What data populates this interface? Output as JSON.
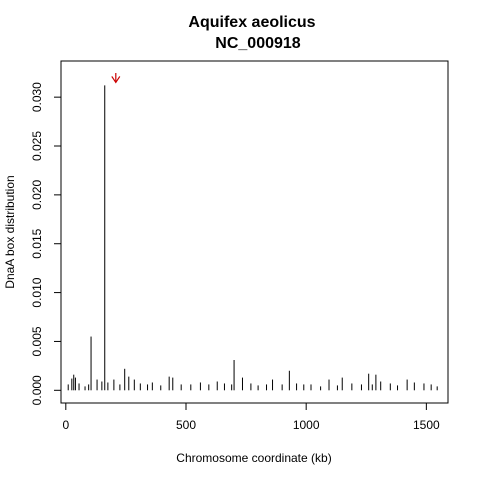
{
  "chart_data": {
    "type": "bar",
    "title": "Aquifex aeolicus",
    "subtitle": "NC_000918",
    "xlabel": "Chromosome coordinate (kb)",
    "ylabel": "DnaA box distribution",
    "xlim": [
      -20,
      1590
    ],
    "ylim": [
      -0.0013,
      0.0337
    ],
    "xticks": [
      0,
      500,
      1000,
      1500
    ],
    "xtick_labels": [
      "0",
      "500",
      "1000",
      "1500"
    ],
    "yticks": [
      0.0,
      0.005,
      0.01,
      0.015,
      0.02,
      0.025,
      0.03
    ],
    "ytick_labels": [
      "0.000",
      "0.005",
      "0.010",
      "0.015",
      "0.020",
      "0.025",
      "0.030"
    ],
    "grid": false,
    "bar_color": "#000000",
    "marker_color": "#cc0000",
    "marker": {
      "type": "arrow",
      "x": 208,
      "label": "↓"
    },
    "x": [
      10,
      25,
      33,
      40,
      55,
      80,
      95,
      105,
      130,
      150,
      162,
      175,
      200,
      225,
      245,
      262,
      285,
      310,
      340,
      360,
      395,
      430,
      445,
      480,
      520,
      560,
      595,
      630,
      660,
      690,
      700,
      735,
      770,
      800,
      835,
      860,
      900,
      930,
      960,
      990,
      1020,
      1060,
      1095,
      1130,
      1150,
      1190,
      1230,
      1260,
      1275,
      1290,
      1310,
      1350,
      1380,
      1420,
      1450,
      1490,
      1520,
      1545
    ],
    "values": [
      0.0006,
      0.0012,
      0.0016,
      0.0013,
      0.0007,
      0.0004,
      0.0006,
      0.0055,
      0.0011,
      0.0009,
      0.0312,
      0.0008,
      0.0011,
      0.0006,
      0.0022,
      0.0014,
      0.0011,
      0.0007,
      0.0006,
      0.0008,
      0.0005,
      0.0014,
      0.0013,
      0.0006,
      0.0006,
      0.0008,
      0.0006,
      0.0009,
      0.0007,
      0.0006,
      0.0031,
      0.0013,
      0.0007,
      0.0005,
      0.0006,
      0.0011,
      0.0006,
      0.002,
      0.0007,
      0.0006,
      0.0006,
      0.0004,
      0.0011,
      0.0005,
      0.0013,
      0.0007,
      0.0006,
      0.0017,
      0.0006,
      0.0016,
      0.0009,
      0.0007,
      0.0005,
      0.0011,
      0.0008,
      0.0007,
      0.0006,
      0.0004
    ]
  }
}
